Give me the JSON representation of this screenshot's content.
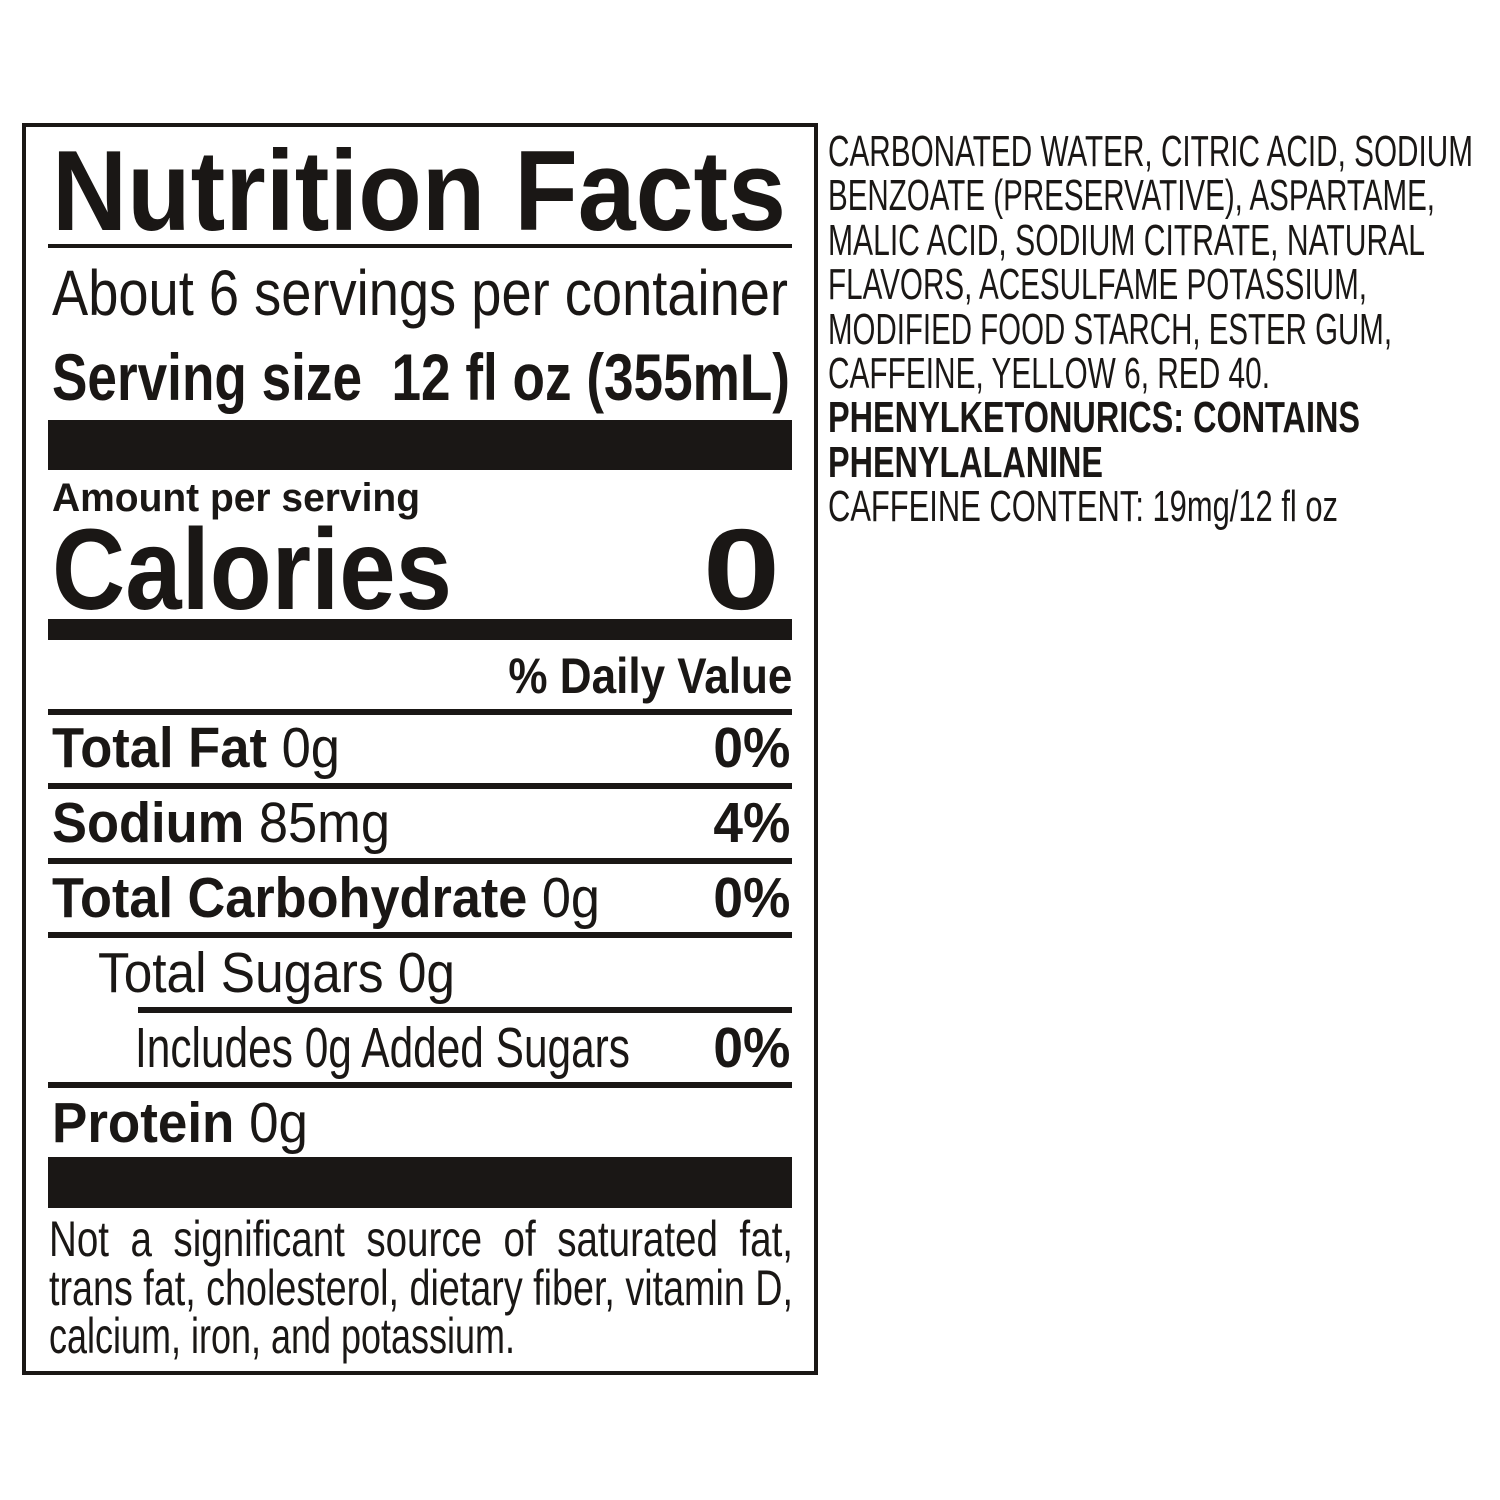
{
  "label": {
    "title": "Nutrition Facts",
    "servings_per_container": "About 6 servings per container",
    "serving_size_label": "Serving size",
    "serving_size_value": "12 fl oz (355mL)",
    "amount_per_serving": "Amount per serving",
    "calories_label": "Calories",
    "calories_value": "0",
    "daily_value_header": "% Daily Value",
    "nutrients": [
      {
        "name": "Total Fat",
        "amount": "0g",
        "dv": "0%"
      },
      {
        "name": "Sodium",
        "amount": "85mg",
        "dv": "4%"
      },
      {
        "name": "Total Carbohydrate",
        "amount": "0g",
        "dv": "0%"
      },
      {
        "name": "Total Sugars 0g"
      },
      {
        "name": "Includes 0g Added Sugars",
        "dv": "0%"
      },
      {
        "name": "Protein",
        "amount": "0g"
      }
    ],
    "footnote_lines": [
      "Not a significant source of saturated fat,",
      "trans fat, cholesterol, dietary fiber, vitamin D,",
      "calcium, iron, and potassium."
    ]
  },
  "ingredients": {
    "lines": [
      "CARBONATED WATER, CITRIC ACID, SODIUM",
      "BENZOATE (PRESERVATIVE), ASPARTAME,",
      "MALIC ACID, SODIUM CITRATE, NATURAL",
      "FLAVORS, ACESULFAME POTASSIUM,",
      "MODIFIED FOOD STARCH, ESTER GUM,",
      "CAFFEINE, YELLOW 6, RED 40."
    ],
    "warning_lines": [
      "PHENYLKETONURICS: CONTAINS",
      "PHENYLALANINE"
    ],
    "caffeine": "CAFFEINE CONTENT: 19mg/12 fl oz"
  },
  "colors": {
    "ink": "#1a1715",
    "background": "#ffffff"
  }
}
